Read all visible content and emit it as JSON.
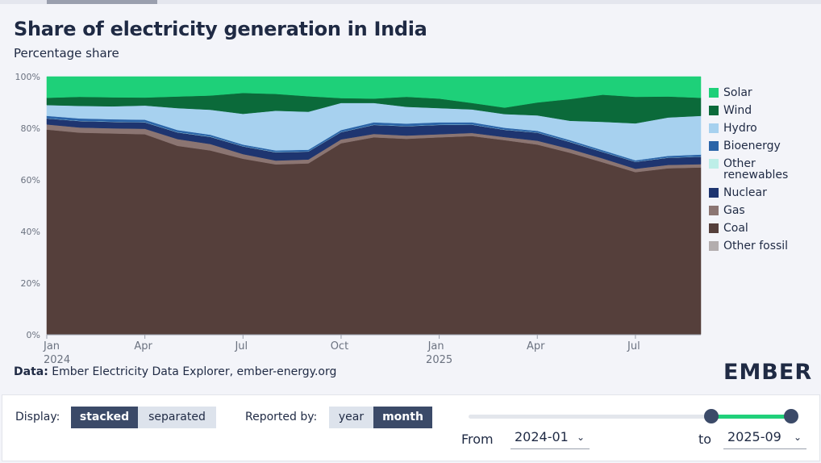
{
  "title": "Share of electricity generation in India",
  "subtitle": "Percentage share",
  "data_source_label": "Data:",
  "data_source_text": "Ember Electricity Data Explorer, ember-energy.org",
  "logo": "EMBER",
  "controls": {
    "display_label": "Display:",
    "display_options": [
      "stacked",
      "separated"
    ],
    "display_selected": "stacked",
    "reported_label": "Reported by:",
    "reported_options": [
      "year",
      "month"
    ],
    "reported_selected": "month",
    "from_label": "From",
    "from_value": "2024-01",
    "to_label": "to",
    "to_value": "2025-09"
  },
  "colors": {
    "Solar": "#1ed079",
    "Wind": "#0b6a3a",
    "Hydro": "#a7d1ef",
    "Bioenergy": "#2b64a8",
    "Other renewables": "#bdeee8",
    "Nuclear": "#1e3570",
    "Gas": "#8b7572",
    "Coal": "#553f3b",
    "Other fossil": "#b3adae"
  },
  "chart_data": {
    "type": "area",
    "stacked": true,
    "title": "Share of electricity generation in India",
    "ylabel": "Percentage share",
    "ylim": [
      0,
      100
    ],
    "yticks": [
      "0%",
      "20%",
      "40%",
      "60%",
      "80%",
      "100%"
    ],
    "xticks": [
      {
        "month": "2024-01",
        "label": "Jan",
        "sublabel": "2024"
      },
      {
        "month": "2024-04",
        "label": "Apr",
        "sublabel": ""
      },
      {
        "month": "2024-07",
        "label": "Jul",
        "sublabel": ""
      },
      {
        "month": "2024-10",
        "label": "Oct",
        "sublabel": ""
      },
      {
        "month": "2025-01",
        "label": "Jan",
        "sublabel": "2025"
      },
      {
        "month": "2025-04",
        "label": "Apr",
        "sublabel": ""
      },
      {
        "month": "2025-07",
        "label": "Jul",
        "sublabel": ""
      }
    ],
    "x": [
      "2024-01",
      "2024-02",
      "2024-03",
      "2024-04",
      "2024-05",
      "2024-06",
      "2024-07",
      "2024-08",
      "2024-09",
      "2024-10",
      "2024-11",
      "2024-12",
      "2025-01",
      "2025-02",
      "2025-03",
      "2025-04",
      "2025-05",
      "2025-06",
      "2025-07",
      "2025-08",
      "2025-09"
    ],
    "series": [
      {
        "name": "Other fossil",
        "values": [
          0.2,
          0.2,
          0.2,
          0.2,
          0.2,
          0.2,
          0.2,
          0.2,
          0.2,
          0.2,
          0.2,
          0.2,
          0.2,
          0.2,
          0.2,
          0.2,
          0.2,
          0.2,
          0.2,
          0.2,
          0.2
        ]
      },
      {
        "name": "Coal",
        "values": [
          79.3,
          78.1,
          77.8,
          77.5,
          73.0,
          71.2,
          68.0,
          65.8,
          66.2,
          74.0,
          76.3,
          75.7,
          76.3,
          76.8,
          75.2,
          73.5,
          70.3,
          66.6,
          62.8,
          64.3,
          64.6
        ]
      },
      {
        "name": "Gas",
        "values": [
          2.0,
          2.0,
          2.0,
          2.1,
          2.6,
          2.5,
          1.8,
          1.5,
          1.5,
          1.5,
          1.3,
          1.3,
          1.2,
          1.2,
          1.2,
          1.5,
          1.5,
          1.5,
          1.3,
          1.3,
          1.3
        ]
      },
      {
        "name": "Nuclear",
        "values": [
          2.3,
          2.5,
          2.5,
          2.5,
          2.6,
          2.8,
          3.0,
          3.2,
          3.1,
          2.8,
          3.5,
          3.6,
          3.6,
          3.2,
          2.8,
          3.1,
          2.7,
          2.5,
          2.7,
          2.8,
          2.9
        ]
      },
      {
        "name": "Other renewables",
        "values": [
          0.1,
          0.1,
          0.1,
          0.1,
          0.1,
          0.1,
          0.1,
          0.1,
          0.1,
          0.1,
          0.1,
          0.1,
          0.1,
          0.1,
          0.1,
          0.1,
          0.1,
          0.1,
          0.1,
          0.1,
          0.1
        ]
      },
      {
        "name": "Bioenergy",
        "values": [
          0.9,
          0.9,
          0.9,
          0.9,
          0.8,
          0.7,
          0.6,
          0.6,
          0.6,
          0.7,
          0.9,
          0.9,
          0.9,
          0.8,
          0.7,
          0.6,
          0.6,
          0.6,
          0.5,
          0.6,
          0.7
        ]
      },
      {
        "name": "Hydro",
        "values": [
          4.2,
          4.9,
          5.0,
          5.5,
          8.5,
          9.7,
          11.9,
          15.4,
          14.7,
          10.5,
          7.5,
          6.5,
          5.5,
          5.0,
          5.3,
          6.0,
          7.5,
          11.0,
          14.3,
          14.9,
          15.0
        ]
      },
      {
        "name": "Wind",
        "values": [
          2.8,
          3.5,
          3.5,
          3.1,
          4.5,
          5.5,
          8.1,
          6.5,
          6.0,
          1.9,
          1.7,
          3.9,
          3.7,
          2.5,
          2.5,
          5.0,
          8.4,
          10.5,
          10.3,
          8.1,
          7.0
        ]
      },
      {
        "name": "Solar",
        "values": [
          8.2,
          7.8,
          8.0,
          8.1,
          7.7,
          7.3,
          6.3,
          6.7,
          7.6,
          8.3,
          8.5,
          7.8,
          8.5,
          10.2,
          12.0,
          10.0,
          8.7,
          7.0,
          7.8,
          7.7,
          8.2
        ]
      }
    ],
    "legend": [
      "Solar",
      "Wind",
      "Hydro",
      "Bioenergy",
      "Other renewables",
      "Nuclear",
      "Gas",
      "Coal",
      "Other fossil"
    ],
    "legend_position": "right"
  }
}
